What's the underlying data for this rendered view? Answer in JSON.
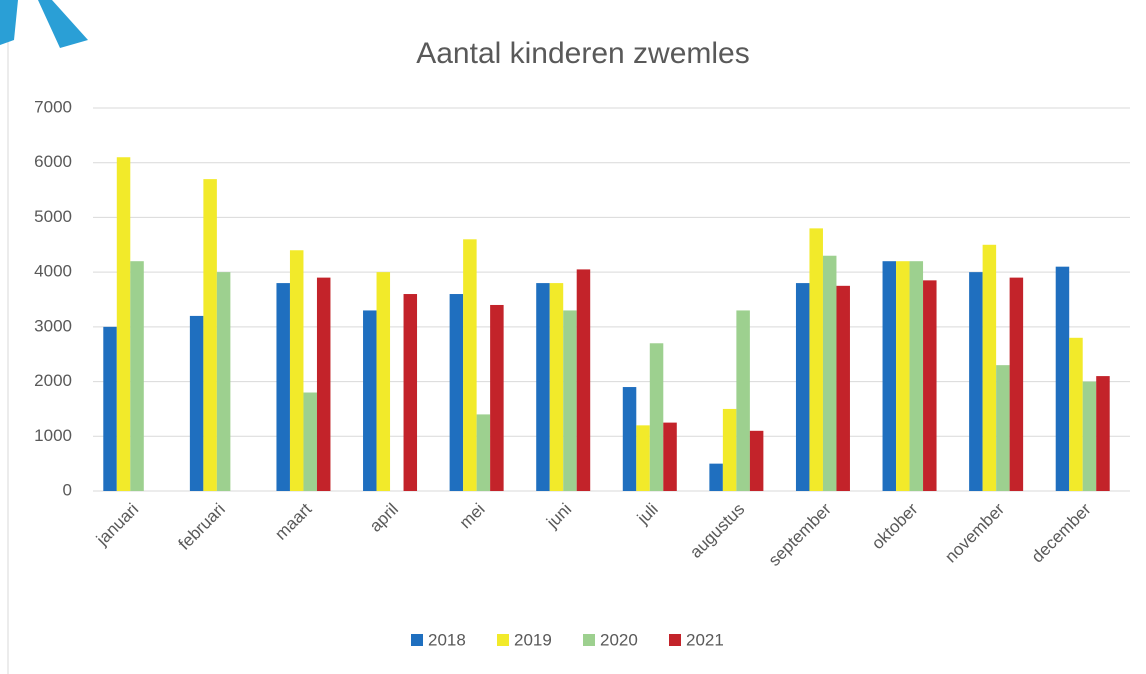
{
  "chart_data": {
    "type": "bar",
    "title": "Aantal kinderen zwemles",
    "categories": [
      "januari",
      "februari",
      "maart",
      "april",
      "mei",
      "juni",
      "juli",
      "augustus",
      "september",
      "oktober",
      "november",
      "december"
    ],
    "series": [
      {
        "name": "2018",
        "color": "#1f6fbf",
        "values": [
          3000,
          3200,
          3800,
          3300,
          3600,
          3800,
          1900,
          500,
          3800,
          4200,
          4000,
          4100
        ]
      },
      {
        "name": "2019",
        "color": "#f2ea2a",
        "values": [
          6100,
          5700,
          4400,
          4000,
          4600,
          3800,
          1200,
          1500,
          4800,
          4200,
          4500,
          2800
        ]
      },
      {
        "name": "2020",
        "color": "#9dd08f",
        "values": [
          4200,
          4000,
          1800,
          null,
          1400,
          3300,
          2700,
          3300,
          4300,
          4200,
          2300,
          2000
        ]
      },
      {
        "name": "2021",
        "color": "#c3232a",
        "values": [
          null,
          null,
          3900,
          3600,
          3400,
          4050,
          1250,
          1100,
          3750,
          3850,
          3900,
          2100
        ]
      }
    ],
    "ylim": [
      0,
      7000
    ],
    "yticks": [
      0,
      1000,
      2000,
      3000,
      4000,
      5000,
      6000,
      7000
    ],
    "grid": true,
    "legend": "bottom"
  }
}
